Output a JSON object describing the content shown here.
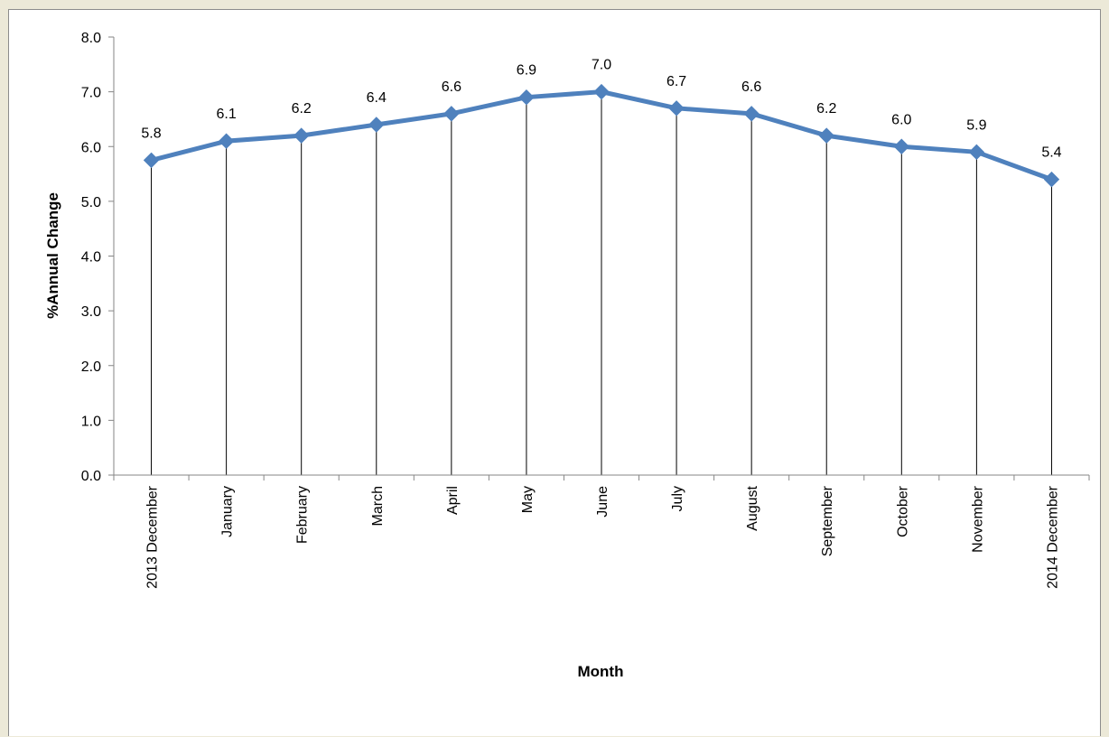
{
  "chart_data": {
    "type": "line",
    "title": "",
    "xlabel": "Month",
    "ylabel": "%Annual Change",
    "ylim": [
      0,
      8
    ],
    "ytick_step": 1,
    "ytick_labels": [
      "0.0",
      "1.0",
      "2.0",
      "3.0",
      "4.0",
      "5.0",
      "6.0",
      "7.0",
      "8.0"
    ],
    "categories": [
      "2013 December",
      "January",
      "February",
      "March",
      "April",
      "May",
      "June",
      "July",
      "August",
      "September",
      "October",
      "November",
      "2014 December"
    ],
    "series": [
      {
        "values": [
          5.75,
          6.1,
          6.2,
          6.4,
          6.6,
          6.9,
          7.0,
          6.7,
          6.6,
          6.2,
          6.0,
          5.9,
          5.4
        ],
        "labels": [
          "5.8",
          "6.1",
          "6.2",
          "6.4",
          "6.6",
          "6.9",
          "7.0",
          "6.7",
          "6.6",
          "6.2",
          "6.0",
          "5.9",
          "5.4"
        ],
        "color": "#4f81bd",
        "marker": "diamond"
      }
    ],
    "drop_lines": true,
    "grid": false,
    "legend": "none"
  }
}
